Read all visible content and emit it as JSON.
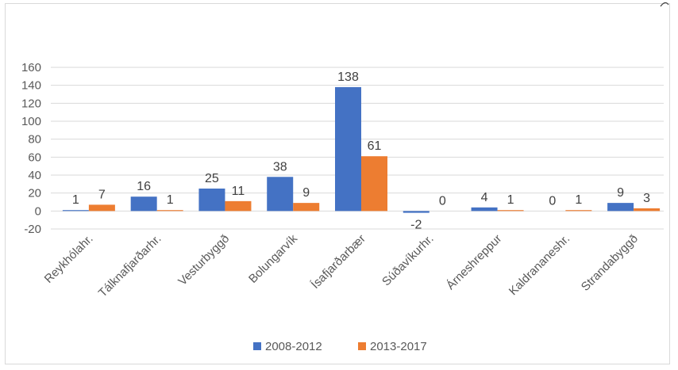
{
  "chart_data": {
    "type": "bar",
    "categories": [
      "Reykhólahr.",
      "Tálknafjarðarhr.",
      "Vesturbyggð",
      "Bolungarvík",
      "Ísafjarðarbær",
      "Súðavíkurhr.",
      "Árneshreppur",
      "Kaldrananeshr.",
      "Strandabyggð"
    ],
    "series": [
      {
        "name": "2008-2012",
        "color": "#4472c4",
        "values": [
          1,
          16,
          25,
          38,
          138,
          -2,
          4,
          0,
          9
        ]
      },
      {
        "name": "2013-2017",
        "color": "#ed7d31",
        "values": [
          7,
          1,
          11,
          9,
          61,
          0,
          1,
          1,
          3
        ]
      }
    ],
    "ylim": [
      -20,
      160
    ],
    "yticks": [
      -20,
      0,
      20,
      40,
      60,
      80,
      100,
      120,
      140,
      160
    ],
    "grid": true,
    "legend": "bottom",
    "title": "",
    "xlabel": "",
    "ylabel": ""
  }
}
